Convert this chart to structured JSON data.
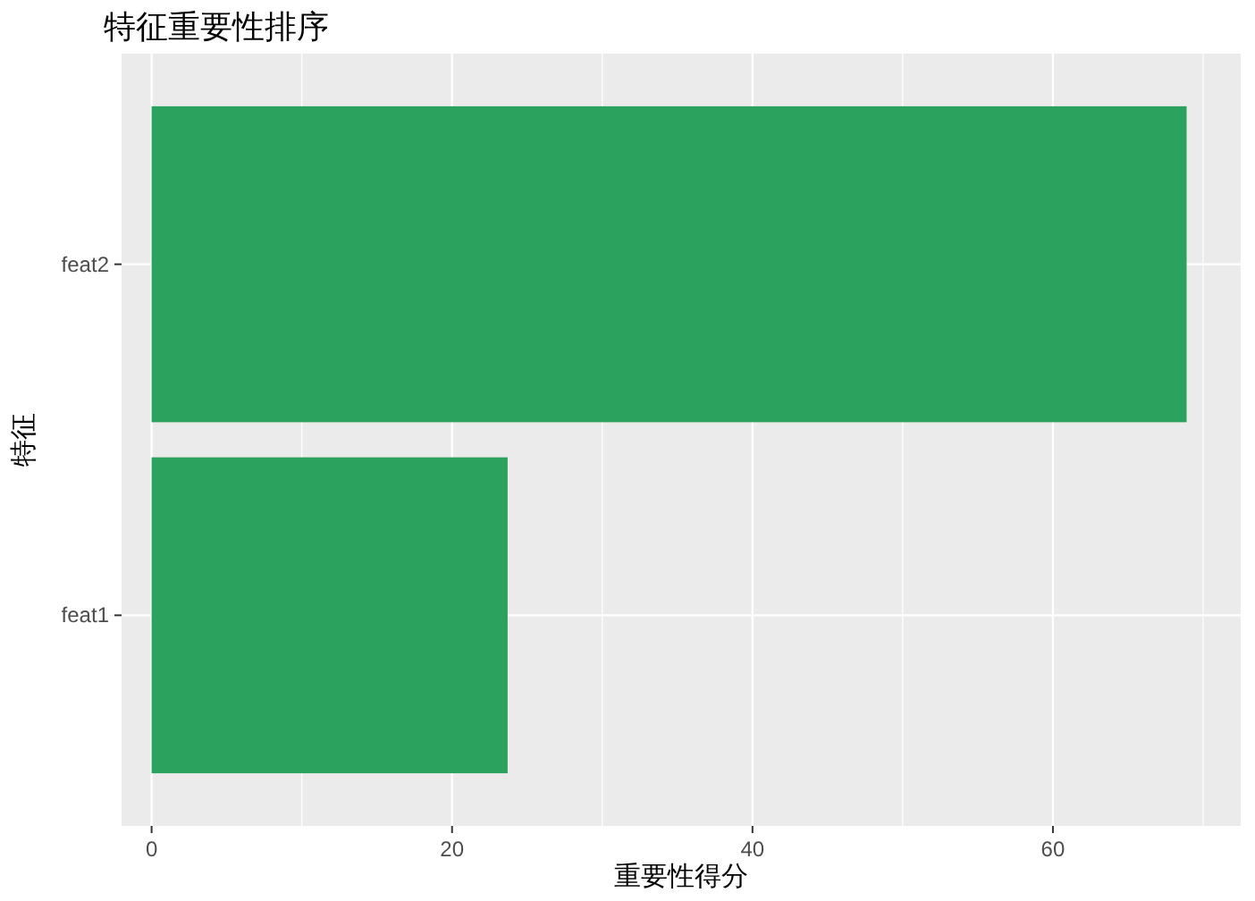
{
  "chart_data": {
    "type": "bar",
    "orientation": "horizontal",
    "title": "特征重要性排序",
    "xlabel": "重要性得分",
    "ylabel": "特征",
    "categories": [
      "feat2",
      "feat1"
    ],
    "values": [
      68.9,
      23.7
    ],
    "color": "#2ca25f",
    "xlim": [
      -2,
      72.5
    ],
    "xticks": [
      0,
      20,
      40,
      60
    ],
    "grid": true
  }
}
